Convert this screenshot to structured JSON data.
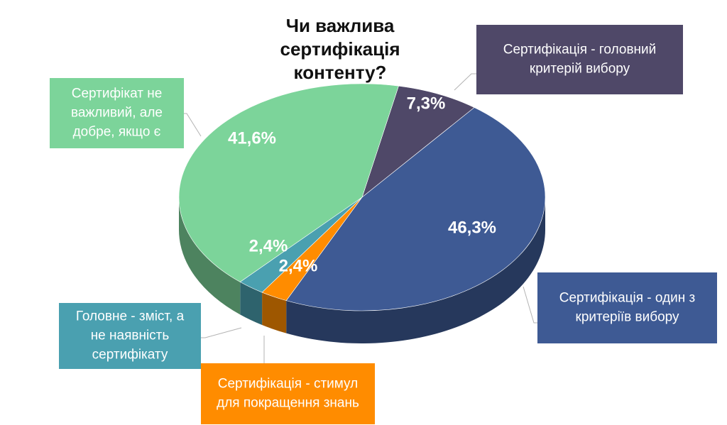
{
  "chart_data": {
    "type": "pie",
    "title": "Чи важлива сертифікація контенту?",
    "title_lines": [
      "Чи важлива",
      "сертифікація",
      "контенту?"
    ],
    "slices": [
      {
        "label": "Сертифікація - головний критерій вибору",
        "label_lines": [
          "Сертифікація - головний",
          "критерій вибору"
        ],
        "value": 7.3,
        "value_label": "7,3%",
        "color": "#4f4868"
      },
      {
        "label": "Сертифікація - один з критеріїв вибору",
        "label_lines": [
          "Сертифікація - один з",
          "критеріїв вибору"
        ],
        "value": 46.3,
        "value_label": "46,3%",
        "color": "#3e5a94"
      },
      {
        "label": "Сертифікація - стимул для покращення знань",
        "label_lines": [
          "Сертифікація - стимул",
          "для покращення знань"
        ],
        "value": 2.4,
        "value_label": "2,4%",
        "color": "#ff8c00"
      },
      {
        "label": "Головне - зміст, а не наявність сертифікату",
        "label_lines": [
          "Головне - зміст, а",
          "не наявність",
          "сертифікату"
        ],
        "value": 2.4,
        "value_label": "2,4%",
        "color": "#4aa0b0"
      },
      {
        "label": "Сертифікат не важливий, але добре, якщо є",
        "label_lines": [
          "Сертифікат не",
          "важливий, але",
          "добре, якщо є"
        ],
        "value": 41.6,
        "value_label": "41,6%",
        "color": "#7cd49a"
      }
    ],
    "style": "3d-pie",
    "legend": "callout-boxes"
  }
}
